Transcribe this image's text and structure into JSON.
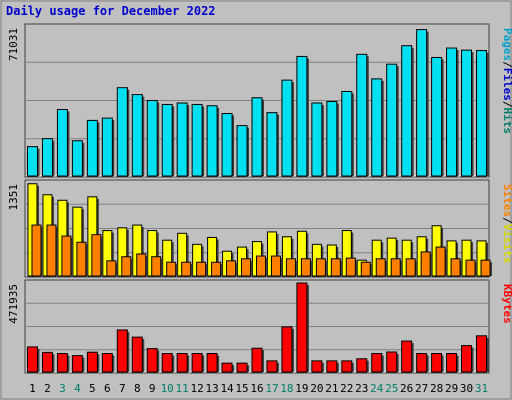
{
  "chart_data": [
    {
      "type": "bar",
      "title": "Daily usage for December 2022",
      "ylabel_parts": [
        {
          "text": "Pages",
          "color": "#00a0c8"
        },
        {
          "text": "/",
          "color": "#000000"
        },
        {
          "text": "Files",
          "color": "#0000cc"
        },
        {
          "text": "/",
          "color": "#000000"
        },
        {
          "text": "Hits",
          "color": "#00806a"
        }
      ],
      "ymax_label": "71031",
      "ylim": [
        0,
        71031
      ],
      "categories": [
        "1",
        "2",
        "3",
        "4",
        "5",
        "6",
        "7",
        "8",
        "9",
        "10",
        "11",
        "12",
        "13",
        "14",
        "15",
        "16",
        "17",
        "18",
        "19",
        "20",
        "21",
        "22",
        "23",
        "24",
        "25",
        "26",
        "27",
        "28",
        "29",
        "30",
        "31"
      ],
      "series": [
        {
          "name": "Hits",
          "color": "#00e0f0",
          "values": [
            14000,
            17800,
            31700,
            16800,
            26500,
            27600,
            42100,
            38800,
            36000,
            34100,
            34800,
            34100,
            33500,
            29800,
            24000,
            37300,
            30200,
            45700,
            57000,
            34800,
            35500,
            40300,
            58000,
            46300,
            53300,
            62100,
            69800,
            56500,
            61000,
            60000,
            59800
          ]
        }
      ]
    },
    {
      "type": "bar",
      "ylabel_parts": [
        {
          "text": "Sites",
          "color": "#ff8000"
        },
        {
          "text": "/",
          "color": "#000000"
        },
        {
          "text": "Visits",
          "color": "#d8d800"
        }
      ],
      "ymax_label": "1351",
      "ylim": [
        0,
        1351
      ],
      "categories": [
        "1",
        "2",
        "3",
        "4",
        "5",
        "6",
        "7",
        "8",
        "9",
        "10",
        "11",
        "12",
        "13",
        "14",
        "15",
        "16",
        "17",
        "18",
        "19",
        "20",
        "21",
        "22",
        "23",
        "24",
        "25",
        "26",
        "27",
        "28",
        "29",
        "30",
        "31"
      ],
      "series": [
        {
          "name": "Visits",
          "color": "#ffff00",
          "values": [
            1340,
            1180,
            1100,
            1000,
            1150,
            660,
            700,
            740,
            660,
            520,
            620,
            460,
            560,
            360,
            420,
            500,
            640,
            570,
            650,
            460,
            450,
            660,
            230,
            520,
            550,
            520,
            570,
            730,
            510,
            520,
            510
          ]
        },
        {
          "name": "Sites",
          "color": "#ff8000",
          "values": [
            740,
            740,
            580,
            490,
            600,
            220,
            280,
            320,
            280,
            200,
            200,
            200,
            200,
            220,
            250,
            290,
            290,
            250,
            250,
            250,
            250,
            260,
            200,
            250,
            250,
            250,
            350,
            420,
            250,
            230,
            230
          ]
        }
      ]
    },
    {
      "type": "bar",
      "ylabel_parts": [
        {
          "text": "KBytes",
          "color": "#ff0000"
        }
      ],
      "ymax_label": "471935",
      "ylim": [
        0,
        471935
      ],
      "categories": [
        "1",
        "2",
        "3",
        "4",
        "5",
        "6",
        "7",
        "8",
        "9",
        "10",
        "11",
        "12",
        "13",
        "14",
        "15",
        "16",
        "17",
        "18",
        "19",
        "20",
        "21",
        "22",
        "23",
        "24",
        "25",
        "26",
        "27",
        "28",
        "29",
        "30",
        "31"
      ],
      "series": [
        {
          "name": "KBytes",
          "color": "#ff0000",
          "values": [
            133000,
            104000,
            98000,
            87000,
            105000,
            98000,
            223000,
            185000,
            124000,
            98000,
            98000,
            98000,
            98000,
            47000,
            47000,
            126000,
            59000,
            239000,
            471935,
            59000,
            59000,
            59000,
            70000,
            98000,
            106000,
            164000,
            98000,
            98000,
            98000,
            140000,
            192000
          ]
        }
      ]
    }
  ],
  "x_axis": {
    "labels": [
      "1",
      "2",
      "3",
      "4",
      "5",
      "6",
      "7",
      "8",
      "9",
      "10",
      "11",
      "12",
      "13",
      "14",
      "15",
      "16",
      "17",
      "18",
      "19",
      "20",
      "21",
      "22",
      "23",
      "24",
      "25",
      "26",
      "27",
      "28",
      "29",
      "30",
      "31"
    ],
    "weekend_days": [
      "3",
      "4",
      "10",
      "11",
      "17",
      "18",
      "24",
      "25",
      "31"
    ],
    "weekday_color": "#000000",
    "weekend_color": "#00806a"
  },
  "colors": {
    "background": "#c0c0c0",
    "title": "#0000cc",
    "grid": "#808080"
  }
}
